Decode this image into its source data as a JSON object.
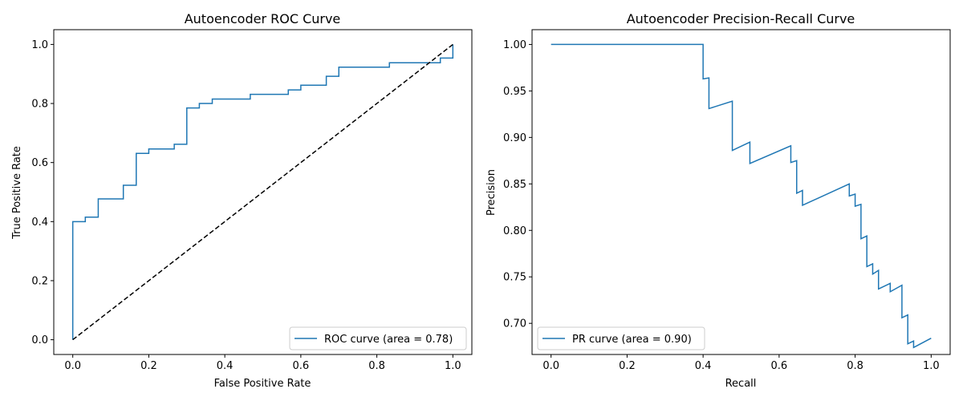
{
  "chart_data": [
    {
      "type": "line",
      "title": "Autoencoder ROC Curve",
      "xlabel": "False Positive Rate",
      "ylabel": "True Positive Rate",
      "xlim": [
        -0.05,
        1.05
      ],
      "ylim": [
        -0.05,
        1.05
      ],
      "xticks": [
        "0.0",
        "0.2",
        "0.4",
        "0.6",
        "0.8",
        "1.0"
      ],
      "yticks": [
        "0.0",
        "0.2",
        "0.4",
        "0.6",
        "0.8",
        "1.0"
      ],
      "grid": false,
      "legend_position": "lower-right",
      "series": [
        {
          "name": "ROC curve (area = 0.78)",
          "color": "#1f77b4",
          "style": "solid",
          "x": [
            0,
            0,
            0.033,
            0.033,
            0.067,
            0.067,
            0.133,
            0.133,
            0.167,
            0.167,
            0.2,
            0.2,
            0.267,
            0.267,
            0.3,
            0.3,
            0.333,
            0.333,
            0.367,
            0.367,
            0.467,
            0.467,
            0.567,
            0.567,
            0.6,
            0.6,
            0.667,
            0.667,
            0.7,
            0.7,
            0.833,
            0.833,
            0.967,
            0.967,
            1.0,
            1.0
          ],
          "y": [
            0,
            0.4,
            0.4,
            0.415,
            0.415,
            0.477,
            0.477,
            0.523,
            0.523,
            0.631,
            0.631,
            0.646,
            0.646,
            0.662,
            0.662,
            0.785,
            0.785,
            0.8,
            0.8,
            0.815,
            0.815,
            0.831,
            0.831,
            0.846,
            0.846,
            0.862,
            0.862,
            0.892,
            0.892,
            0.923,
            0.923,
            0.938,
            0.938,
            0.954,
            0.954,
            1.0
          ]
        },
        {
          "name": "",
          "color": "#000000",
          "style": "dashed",
          "x": [
            0,
            1
          ],
          "y": [
            0,
            1
          ]
        }
      ]
    },
    {
      "type": "line",
      "title": "Autoencoder Precision-Recall Curve",
      "xlabel": "Recall",
      "ylabel": "Precision",
      "xlim": [
        -0.05,
        1.05
      ],
      "ylim": [
        0.6665,
        1.0159
      ],
      "xticks": [
        "0.0",
        "0.2",
        "0.4",
        "0.6",
        "0.8",
        "1.0"
      ],
      "yticks": [
        "0.70",
        "0.75",
        "0.80",
        "0.85",
        "0.90",
        "0.95",
        "1.00"
      ],
      "grid": false,
      "legend_position": "lower-left",
      "series": [
        {
          "name": "PR curve (area = 0.90)",
          "color": "#1f77b4",
          "style": "solid",
          "x": [
            0.0,
            0.4,
            0.4,
            0.4154,
            0.4154,
            0.4769,
            0.4769,
            0.5231,
            0.5231,
            0.6308,
            0.6308,
            0.6462,
            0.6462,
            0.6615,
            0.6615,
            0.7846,
            0.7846,
            0.8,
            0.8,
            0.8154,
            0.8154,
            0.8308,
            0.8308,
            0.8462,
            0.8462,
            0.8615,
            0.8615,
            0.8923,
            0.8923,
            0.9231,
            0.9231,
            0.9385,
            0.9385,
            0.9538,
            0.9538,
            1.0
          ],
          "y": [
            1.0,
            1.0,
            0.963,
            0.964,
            0.931,
            0.939,
            0.886,
            0.895,
            0.872,
            0.891,
            0.873,
            0.875,
            0.84,
            0.843,
            0.827,
            0.85,
            0.837,
            0.839,
            0.826,
            0.828,
            0.791,
            0.794,
            0.761,
            0.764,
            0.753,
            0.757,
            0.737,
            0.743,
            0.734,
            0.741,
            0.706,
            0.709,
            0.678,
            0.681,
            0.674,
            0.684
          ]
        }
      ]
    }
  ]
}
